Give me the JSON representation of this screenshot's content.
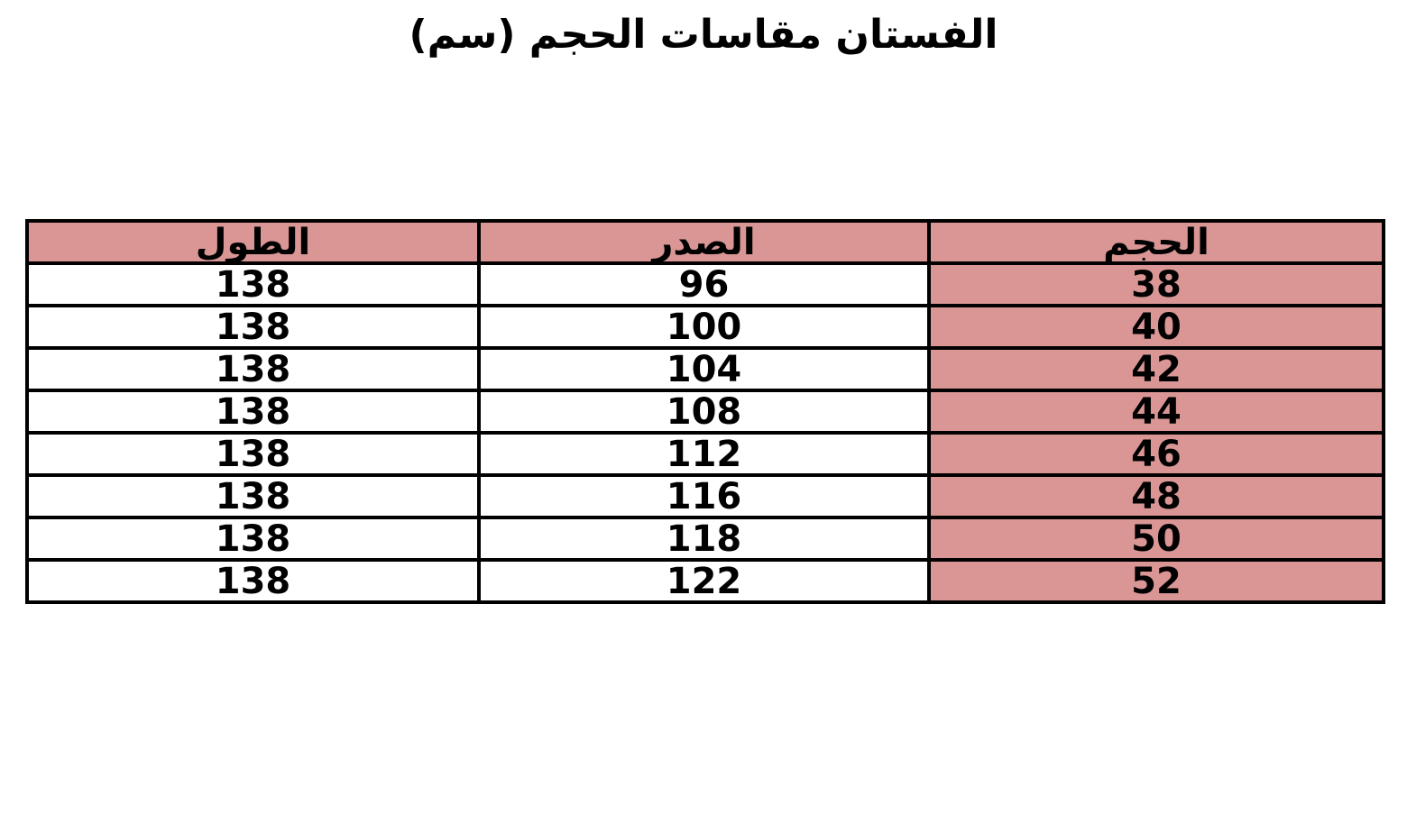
{
  "page": {
    "title": "الفستان مقاسات الحجم (سم)"
  },
  "chart_data": {
    "type": "table",
    "title": "الفستان مقاسات الحجم (سم)",
    "direction": "rtl",
    "columns": [
      {
        "key": "size",
        "label": "الحجم"
      },
      {
        "key": "chest",
        "label": "الصدر"
      },
      {
        "key": "length",
        "label": "الطول"
      }
    ],
    "rows": [
      {
        "size": "38",
        "chest": "96",
        "length": "138"
      },
      {
        "size": "40",
        "chest": "100",
        "length": "138"
      },
      {
        "size": "42",
        "chest": "104",
        "length": "138"
      },
      {
        "size": "44",
        "chest": "108",
        "length": "138"
      },
      {
        "size": "46",
        "chest": "112",
        "length": "138"
      },
      {
        "size": "48",
        "chest": "116",
        "length": "138"
      },
      {
        "size": "50",
        "chest": "118",
        "length": "138"
      },
      {
        "size": "52",
        "chest": "122",
        "length": "138"
      }
    ]
  },
  "colors": {
    "header_bg": "#d99694",
    "size_column_bg": "#d99694",
    "row_bg": "#ffffff",
    "border": "#000000",
    "text": "#000000"
  }
}
